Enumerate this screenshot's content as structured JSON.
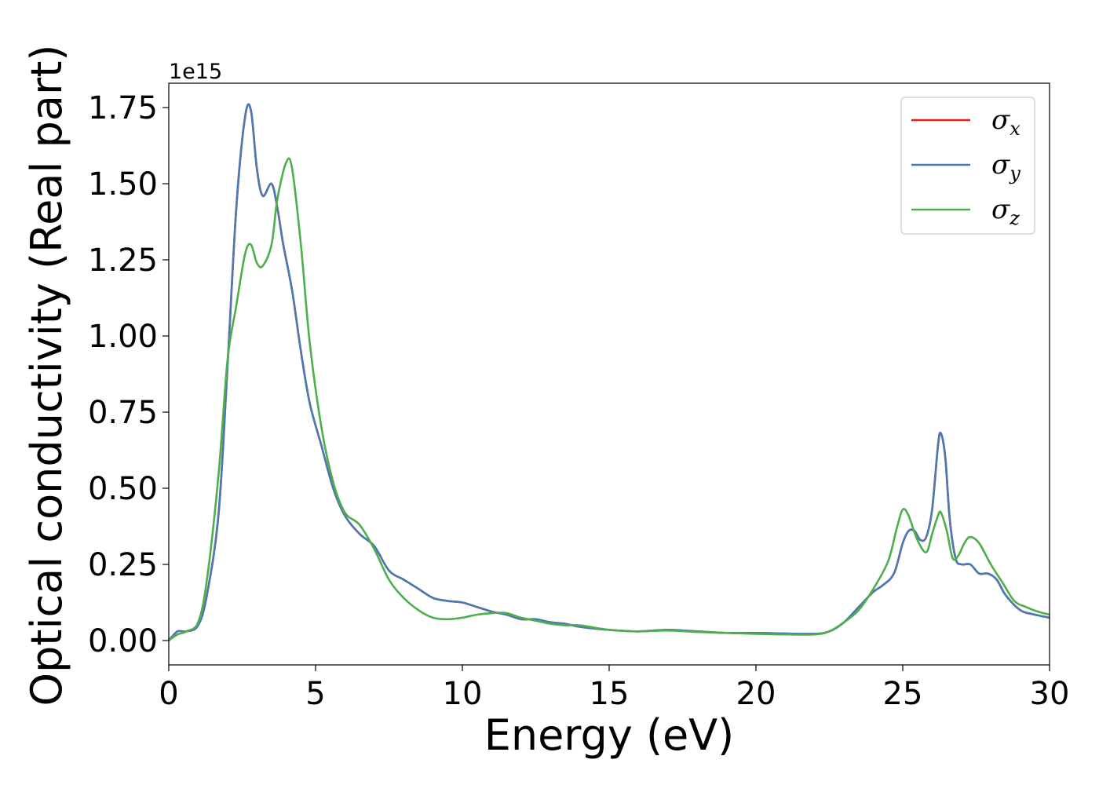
{
  "chart_data": {
    "type": "line",
    "xlabel": "Energy (eV)",
    "ylabel": "Optical conductivity (Real part)",
    "y_offset_text": "1e15",
    "y_multiplier": 1000000000000000.0,
    "xlim": [
      0,
      30
    ],
    "ylim": [
      -0.08,
      1.83
    ],
    "x_ticks": [
      0,
      5,
      10,
      15,
      20,
      25,
      30
    ],
    "x_tick_labels": [
      "0",
      "5",
      "10",
      "15",
      "20",
      "25",
      "30"
    ],
    "y_ticks": [
      0.0,
      0.25,
      0.5,
      0.75,
      1.0,
      1.25,
      1.5,
      1.75
    ],
    "y_tick_labels": [
      "0.00",
      "0.25",
      "0.50",
      "0.75",
      "1.00",
      "1.25",
      "1.50",
      "1.75"
    ],
    "grid": false,
    "legend_position": "top-right",
    "series": [
      {
        "name": "σx",
        "symbol": "σ",
        "subscript": "x",
        "color": "#e41a1c",
        "x": [
          0,
          0.3,
          0.6,
          1.0,
          1.3,
          1.7,
          2.0,
          2.3,
          2.6,
          2.8,
          3.0,
          3.2,
          3.5,
          3.7,
          3.9,
          4.2,
          4.5,
          4.8,
          5.2,
          5.6,
          6.0,
          6.5,
          7.0,
          7.5,
          8.0,
          8.5,
          9.0,
          9.5,
          10.0,
          10.5,
          11.0,
          11.5,
          12.0,
          12.5,
          13.0,
          13.5,
          14.0,
          15.0,
          16.0,
          17.0,
          18.0,
          19.0,
          20.0,
          21.0,
          22.0,
          22.5,
          23.0,
          23.5,
          24.0,
          24.3,
          24.7,
          25.0,
          25.2,
          25.4,
          25.6,
          25.8,
          26.0,
          26.2,
          26.3,
          26.45,
          26.6,
          26.8,
          27.0,
          27.3,
          27.6,
          27.9,
          28.2,
          28.5,
          29.0,
          29.5,
          30.0
        ],
        "values": [
          0.0,
          0.03,
          0.03,
          0.05,
          0.15,
          0.42,
          0.9,
          1.42,
          1.72,
          1.74,
          1.55,
          1.46,
          1.5,
          1.42,
          1.3,
          1.15,
          0.95,
          0.78,
          0.64,
          0.5,
          0.41,
          0.35,
          0.31,
          0.23,
          0.2,
          0.17,
          0.14,
          0.13,
          0.125,
          0.11,
          0.095,
          0.085,
          0.07,
          0.07,
          0.06,
          0.055,
          0.045,
          0.035,
          0.03,
          0.035,
          0.03,
          0.025,
          0.025,
          0.023,
          0.022,
          0.03,
          0.06,
          0.11,
          0.16,
          0.18,
          0.22,
          0.32,
          0.36,
          0.36,
          0.33,
          0.34,
          0.43,
          0.64,
          0.68,
          0.6,
          0.4,
          0.27,
          0.25,
          0.25,
          0.22,
          0.22,
          0.2,
          0.15,
          0.1,
          0.085,
          0.075
        ]
      },
      {
        "name": "σy",
        "symbol": "σ",
        "subscript": "y",
        "color": "#4a7ab5",
        "x": [
          0,
          0.3,
          0.6,
          1.0,
          1.3,
          1.7,
          2.0,
          2.3,
          2.6,
          2.8,
          3.0,
          3.2,
          3.5,
          3.7,
          3.9,
          4.2,
          4.5,
          4.8,
          5.2,
          5.6,
          6.0,
          6.5,
          7.0,
          7.5,
          8.0,
          8.5,
          9.0,
          9.5,
          10.0,
          10.5,
          11.0,
          11.5,
          12.0,
          12.5,
          13.0,
          13.5,
          14.0,
          15.0,
          16.0,
          17.0,
          18.0,
          19.0,
          20.0,
          21.0,
          22.0,
          22.5,
          23.0,
          23.5,
          24.0,
          24.3,
          24.7,
          25.0,
          25.2,
          25.4,
          25.6,
          25.8,
          26.0,
          26.2,
          26.3,
          26.45,
          26.6,
          26.8,
          27.0,
          27.3,
          27.6,
          27.9,
          28.2,
          28.5,
          29.0,
          29.5,
          30.0
        ],
        "values": [
          0.0,
          0.03,
          0.03,
          0.05,
          0.15,
          0.42,
          0.9,
          1.42,
          1.72,
          1.74,
          1.55,
          1.46,
          1.5,
          1.42,
          1.3,
          1.15,
          0.95,
          0.78,
          0.64,
          0.5,
          0.41,
          0.35,
          0.31,
          0.23,
          0.2,
          0.17,
          0.14,
          0.13,
          0.125,
          0.11,
          0.095,
          0.085,
          0.07,
          0.07,
          0.06,
          0.055,
          0.045,
          0.035,
          0.03,
          0.035,
          0.03,
          0.025,
          0.025,
          0.023,
          0.022,
          0.03,
          0.06,
          0.11,
          0.16,
          0.18,
          0.22,
          0.32,
          0.36,
          0.36,
          0.33,
          0.34,
          0.43,
          0.64,
          0.68,
          0.6,
          0.4,
          0.27,
          0.25,
          0.25,
          0.22,
          0.22,
          0.2,
          0.15,
          0.1,
          0.085,
          0.075
        ]
      },
      {
        "name": "σz",
        "symbol": "σ",
        "subscript": "z",
        "color": "#4daf4a",
        "x": [
          0,
          0.3,
          0.6,
          1.0,
          1.3,
          1.7,
          2.0,
          2.3,
          2.6,
          2.8,
          3.0,
          3.2,
          3.5,
          3.7,
          4.0,
          4.2,
          4.5,
          4.8,
          5.2,
          5.6,
          6.0,
          6.5,
          7.0,
          7.5,
          8.0,
          8.5,
          9.0,
          9.5,
          10.0,
          10.5,
          11.0,
          11.5,
          12.0,
          12.5,
          13.0,
          13.5,
          14.0,
          15.0,
          16.0,
          17.0,
          18.0,
          19.0,
          20.0,
          21.0,
          22.0,
          22.5,
          23.0,
          23.5,
          24.0,
          24.5,
          24.8,
          25.0,
          25.2,
          25.5,
          25.8,
          26.0,
          26.2,
          26.3,
          26.5,
          26.7,
          26.9,
          27.1,
          27.3,
          27.6,
          28.0,
          28.4,
          28.8,
          29.2,
          29.6,
          30.0
        ],
        "values": [
          0.0,
          0.02,
          0.03,
          0.06,
          0.2,
          0.55,
          0.92,
          1.1,
          1.27,
          1.3,
          1.24,
          1.23,
          1.3,
          1.45,
          1.57,
          1.55,
          1.3,
          0.98,
          0.7,
          0.52,
          0.42,
          0.38,
          0.3,
          0.2,
          0.14,
          0.1,
          0.075,
          0.07,
          0.075,
          0.085,
          0.09,
          0.09,
          0.075,
          0.065,
          0.055,
          0.05,
          0.05,
          0.035,
          0.03,
          0.033,
          0.028,
          0.025,
          0.022,
          0.02,
          0.02,
          0.03,
          0.06,
          0.1,
          0.17,
          0.26,
          0.37,
          0.43,
          0.41,
          0.33,
          0.29,
          0.35,
          0.41,
          0.42,
          0.36,
          0.27,
          0.28,
          0.32,
          0.34,
          0.32,
          0.25,
          0.19,
          0.13,
          0.11,
          0.095,
          0.085
        ]
      }
    ]
  }
}
